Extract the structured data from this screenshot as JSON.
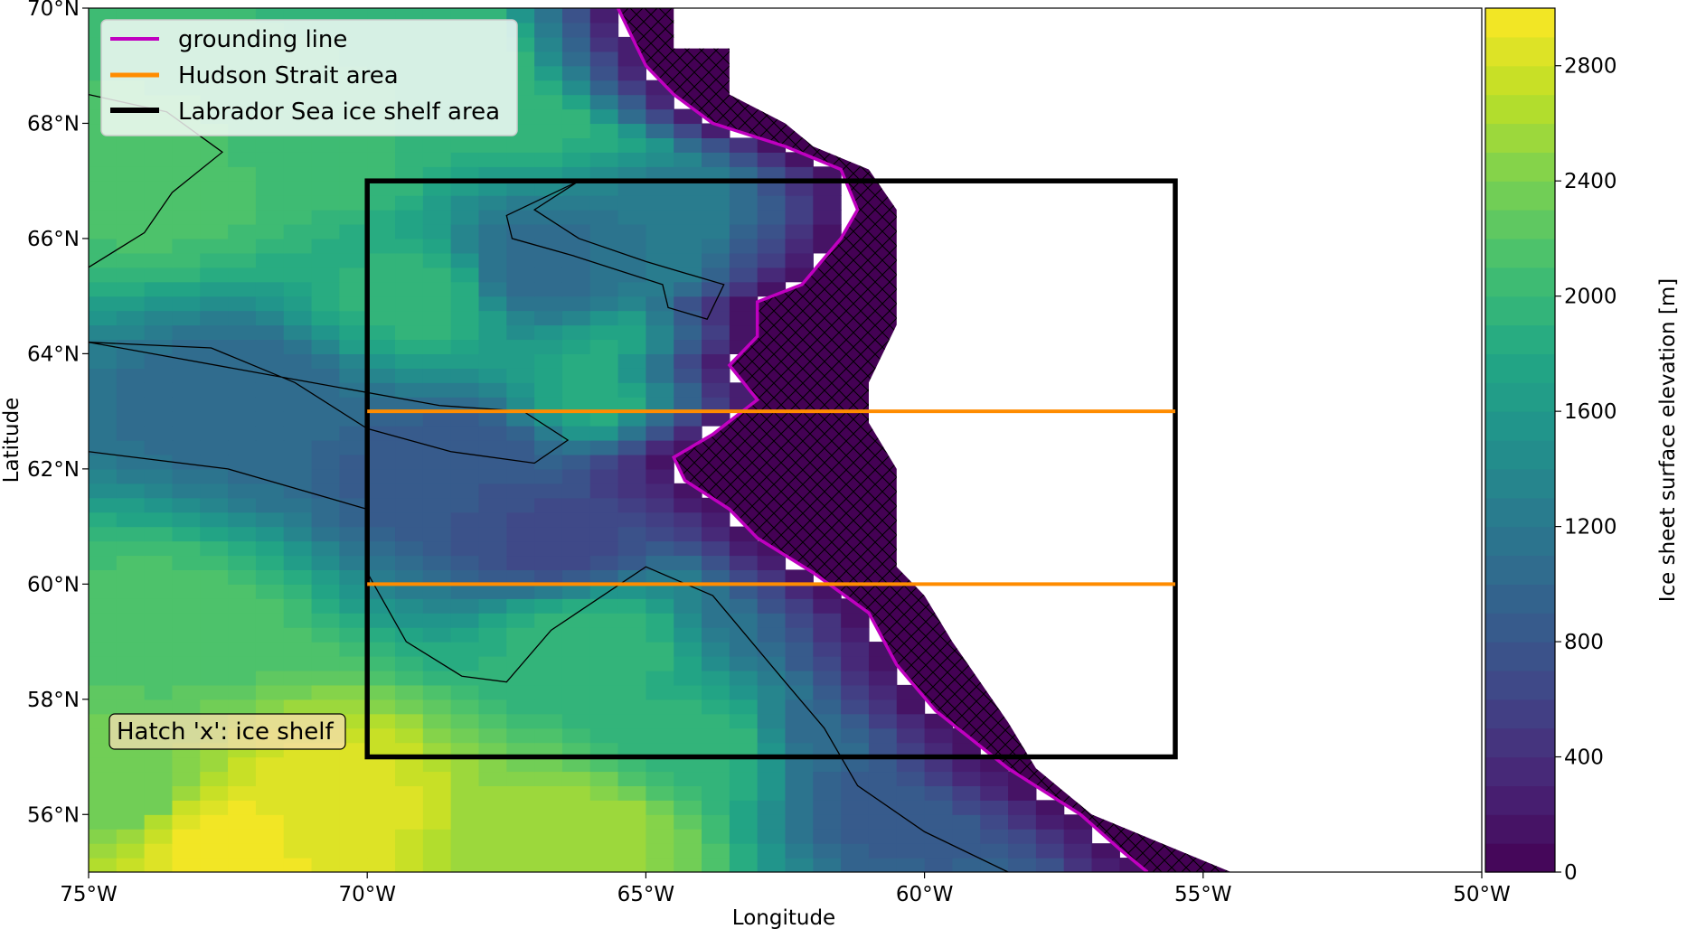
{
  "chart_data": {
    "type": "heatmap",
    "xlabel": "Longitude",
    "ylabel": "Latitude",
    "xlim": [
      -75,
      -50
    ],
    "ylim": [
      55,
      70
    ],
    "x_ticks": [
      {
        "value": -75,
        "label": "75°W"
      },
      {
        "value": -70,
        "label": "70°W"
      },
      {
        "value": -65,
        "label": "65°W"
      },
      {
        "value": -60,
        "label": "60°W"
      },
      {
        "value": -55,
        "label": "55°W"
      },
      {
        "value": -50,
        "label": "50°W"
      }
    ],
    "y_ticks": [
      {
        "value": 56,
        "label": "56°N"
      },
      {
        "value": 58,
        "label": "58°N"
      },
      {
        "value": 60,
        "label": "60°N"
      },
      {
        "value": 62,
        "label": "62°N"
      },
      {
        "value": 64,
        "label": "64°N"
      },
      {
        "value": 66,
        "label": "66°N"
      },
      {
        "value": 68,
        "label": "68°N"
      },
      {
        "value": 70,
        "label": "70°N"
      }
    ],
    "colorbar": {
      "label": "Ice sheet surface elevation [m]",
      "colormap": "viridis",
      "vmin": 0,
      "vmax": 3000,
      "levels": 30,
      "ticks": [
        {
          "value": 0,
          "label": "0"
        },
        {
          "value": 400,
          "label": "400"
        },
        {
          "value": 800,
          "label": "800"
        },
        {
          "value": 1200,
          "label": "1200"
        },
        {
          "value": 1600,
          "label": "1600"
        },
        {
          "value": 2000,
          "label": "2000"
        },
        {
          "value": 2400,
          "label": "2400"
        },
        {
          "value": 2800,
          "label": "2800"
        }
      ]
    },
    "legend": {
      "position": "upper-left",
      "entries": [
        {
          "label": "grounding line",
          "color": "#c000c0"
        },
        {
          "label": "Hudson Strait area",
          "color": "#ff8c00"
        },
        {
          "label": "Labrador Sea ice shelf area",
          "color": "#000000"
        }
      ]
    },
    "annotation": "Hatch 'x': ice shelf",
    "regions": {
      "labrador_sea_ice_shelf_area": {
        "lon": [
          -70,
          -55.5
        ],
        "lat": [
          57,
          67
        ]
      },
      "hudson_strait_area": {
        "lon": [
          -70,
          -55.5
        ],
        "lat": [
          60,
          63
        ]
      }
    },
    "ice_margin": [
      [
        70.0,
        -65.5
      ],
      [
        69.0,
        -65.0
      ],
      [
        68.5,
        -64.5
      ],
      [
        68.0,
        -63.8
      ],
      [
        67.6,
        -62.5
      ],
      [
        67.2,
        -61.5
      ],
      [
        66.5,
        -61.2
      ],
      [
        66.0,
        -61.5
      ],
      [
        65.2,
        -62.2
      ],
      [
        64.9,
        -63.0
      ],
      [
        64.3,
        -63.0
      ],
      [
        63.8,
        -63.5
      ],
      [
        63.2,
        -63.0
      ],
      [
        62.6,
        -63.8
      ],
      [
        62.2,
        -64.5
      ],
      [
        61.8,
        -64.3
      ],
      [
        61.3,
        -63.5
      ],
      [
        60.8,
        -63.0
      ],
      [
        60.2,
        -62.0
      ],
      [
        59.5,
        -61.0
      ],
      [
        58.6,
        -60.5
      ],
      [
        57.8,
        -59.8
      ],
      [
        56.8,
        -58.5
      ],
      [
        56.0,
        -57.2
      ],
      [
        55.4,
        -56.5
      ],
      [
        55.0,
        -56.0
      ]
    ],
    "shelf_front": [
      [
        70.0,
        -64.5
      ],
      [
        69.3,
        -64.5
      ],
      [
        69.3,
        -63.5
      ],
      [
        68.5,
        -63.5
      ],
      [
        68.0,
        -62.5
      ],
      [
        67.6,
        -62.0
      ],
      [
        67.2,
        -61.0
      ],
      [
        66.5,
        -60.5
      ],
      [
        64.5,
        -60.5
      ],
      [
        63.5,
        -61.0
      ],
      [
        62.8,
        -61.0
      ],
      [
        62.0,
        -60.5
      ],
      [
        61.0,
        -60.5
      ],
      [
        60.3,
        -60.5
      ],
      [
        59.8,
        -60.0
      ],
      [
        59.0,
        -59.5
      ],
      [
        58.3,
        -59.0
      ],
      [
        57.6,
        -58.5
      ],
      [
        56.8,
        -58.0
      ],
      [
        56.0,
        -57.0
      ],
      [
        55.4,
        -55.5
      ],
      [
        55.0,
        -54.5
      ]
    ],
    "surface_elevation_anchors": [
      {
        "lon": -72.6,
        "lat": 55.5,
        "value": 2950
      },
      {
        "lon": -70.8,
        "lat": 56.3,
        "value": 2850
      },
      {
        "lon": -66.0,
        "lat": 55.7,
        "value": 2550
      },
      {
        "lon": -74.5,
        "lat": 56.5,
        "value": 2300
      },
      {
        "lon": -73.5,
        "lat": 59.2,
        "value": 2150
      },
      {
        "lon": -73.5,
        "lat": 67.0,
        "value": 2150
      },
      {
        "lon": -71.0,
        "lat": 67.5,
        "value": 2050
      },
      {
        "lon": -69.0,
        "lat": 65.0,
        "value": 1950
      },
      {
        "lon": -67.0,
        "lat": 68.5,
        "value": 1950
      },
      {
        "lon": -65.5,
        "lat": 63.6,
        "value": 1850
      },
      {
        "lon": -66.0,
        "lat": 59.0,
        "value": 2000
      },
      {
        "lon": -64.0,
        "lat": 57.2,
        "value": 1950
      },
      {
        "lon": -72.0,
        "lat": 63.2,
        "value": 1000
      },
      {
        "lon": -68.5,
        "lat": 62.0,
        "value": 800
      },
      {
        "lon": -66.5,
        "lat": 60.8,
        "value": 650
      },
      {
        "lon": -67.0,
        "lat": 65.5,
        "value": 1050
      },
      {
        "lon": -64.0,
        "lat": 66.0,
        "value": 1200
      },
      {
        "lon": -62.5,
        "lat": 59.5,
        "value": 1100
      },
      {
        "lon": -61.5,
        "lat": 57.5,
        "value": 1050
      },
      {
        "lon": -60.5,
        "lat": 56.5,
        "value": 800
      }
    ]
  }
}
